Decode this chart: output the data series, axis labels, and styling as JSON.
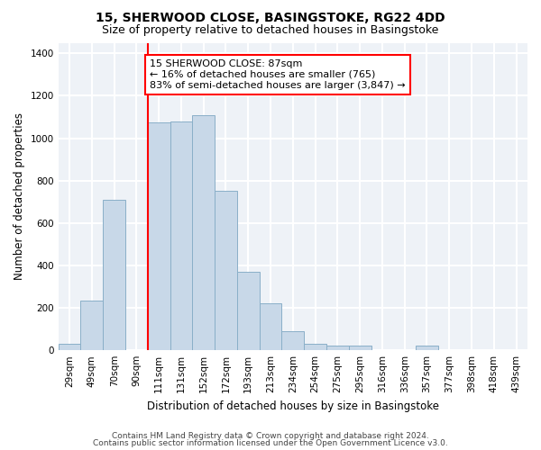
{
  "title1": "15, SHERWOOD CLOSE, BASINGSTOKE, RG22 4DD",
  "title2": "Size of property relative to detached houses in Basingstoke",
  "xlabel": "Distribution of detached houses by size in Basingstoke",
  "ylabel": "Number of detached properties",
  "footnote1": "Contains HM Land Registry data © Crown copyright and database right 2024.",
  "footnote2": "Contains public sector information licensed under the Open Government Licence v3.0.",
  "bin_labels": [
    "29sqm",
    "49sqm",
    "70sqm",
    "90sqm",
    "111sqm",
    "131sqm",
    "152sqm",
    "172sqm",
    "193sqm",
    "213sqm",
    "234sqm",
    "254sqm",
    "275sqm",
    "295sqm",
    "316sqm",
    "336sqm",
    "357sqm",
    "377sqm",
    "398sqm",
    "418sqm",
    "439sqm"
  ],
  "bar_values": [
    30,
    235,
    710,
    0,
    1075,
    1080,
    1110,
    750,
    370,
    220,
    90,
    30,
    20,
    20,
    0,
    0,
    20,
    0,
    0,
    0,
    0
  ],
  "bar_color": "#c8d8e8",
  "bar_edge_color": "#8aafc8",
  "vline_x": 3.5,
  "vline_color": "red",
  "annotation_text": "15 SHERWOOD CLOSE: 87sqm\n← 16% of detached houses are smaller (765)\n83% of semi-detached houses are larger (3,847) →",
  "annotation_box_color": "white",
  "annotation_box_edge_color": "red",
  "ylim": [
    0,
    1450
  ],
  "yticks": [
    0,
    200,
    400,
    600,
    800,
    1000,
    1200,
    1400
  ],
  "background_color": "#eef2f7",
  "grid_color": "white",
  "title1_fontsize": 10,
  "title2_fontsize": 9,
  "xlabel_fontsize": 8.5,
  "ylabel_fontsize": 8.5,
  "tick_fontsize": 7.5,
  "annotation_fontsize": 8,
  "footnote_fontsize": 6.5
}
